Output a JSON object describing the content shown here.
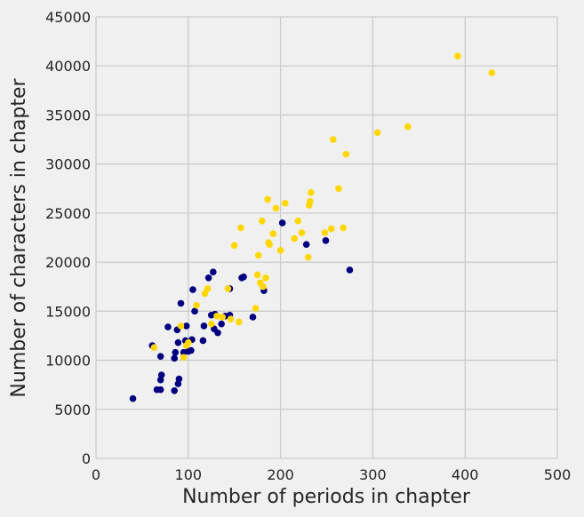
{
  "chart_data": {
    "type": "scatter",
    "title": "",
    "xlabel": "Number of periods in chapter",
    "ylabel": "Number of characters in chapter",
    "xlim": [
      0,
      500
    ],
    "ylim": [
      0,
      45000
    ],
    "xticks": [
      0,
      100,
      200,
      300,
      400,
      500
    ],
    "yticks": [
      0,
      5000,
      10000,
      15000,
      20000,
      25000,
      30000,
      35000,
      40000,
      45000
    ],
    "xtick_labels": [
      "0",
      "100",
      "200",
      "300",
      "400",
      "500"
    ],
    "ytick_labels": [
      "0",
      "5000",
      "10000",
      "15000",
      "20000",
      "25000",
      "30000",
      "35000",
      "40000",
      "45000"
    ],
    "grid": true,
    "series": [
      {
        "color": "#000080",
        "points": [
          [
            40,
            6100
          ],
          [
            66,
            7000
          ],
          [
            70,
            7000
          ],
          [
            70,
            8000
          ],
          [
            71,
            8500
          ],
          [
            85,
            6900
          ],
          [
            89,
            7600
          ],
          [
            90,
            8100
          ],
          [
            70,
            10400
          ],
          [
            85,
            10200
          ],
          [
            86,
            10800
          ],
          [
            61,
            11500
          ],
          [
            88,
            13100
          ],
          [
            89,
            11800
          ],
          [
            92,
            15800
          ],
          [
            95,
            10800
          ],
          [
            97,
            12000
          ],
          [
            98,
            13500
          ],
          [
            100,
            10900
          ],
          [
            103,
            11000
          ],
          [
            104,
            12100
          ],
          [
            105,
            17200
          ],
          [
            107,
            15000
          ],
          [
            78,
            13400
          ],
          [
            116,
            12000
          ],
          [
            117,
            13500
          ],
          [
            122,
            18400
          ],
          [
            125,
            14600
          ],
          [
            127,
            19000
          ],
          [
            129,
            14700
          ],
          [
            128,
            13200
          ],
          [
            132,
            12800
          ],
          [
            136,
            13700
          ],
          [
            140,
            14500
          ],
          [
            145,
            17300
          ],
          [
            145,
            14600
          ],
          [
            158,
            18400
          ],
          [
            160,
            18500
          ],
          [
            170,
            14400
          ],
          [
            182,
            17100
          ],
          [
            202,
            24000
          ],
          [
            228,
            21800
          ],
          [
            249,
            22200
          ],
          [
            275,
            19200
          ]
        ]
      },
      {
        "color": "#ffd700",
        "points": [
          [
            63,
            11300
          ],
          [
            92,
            13500
          ],
          [
            95,
            10300
          ],
          [
            98,
            11500
          ],
          [
            100,
            11800
          ],
          [
            109,
            15600
          ],
          [
            118,
            16800
          ],
          [
            121,
            17300
          ],
          [
            125,
            13700
          ],
          [
            131,
            14500
          ],
          [
            137,
            14400
          ],
          [
            143,
            17300
          ],
          [
            146,
            14200
          ],
          [
            150,
            21700
          ],
          [
            155,
            13900
          ],
          [
            157,
            23500
          ],
          [
            173,
            15300
          ],
          [
            175,
            18700
          ],
          [
            176,
            20700
          ],
          [
            178,
            17900
          ],
          [
            180,
            24200
          ],
          [
            181,
            17500
          ],
          [
            184,
            18400
          ],
          [
            186,
            26400
          ],
          [
            187,
            22000
          ],
          [
            188,
            21800
          ],
          [
            192,
            22900
          ],
          [
            195,
            25500
          ],
          [
            200,
            21200
          ],
          [
            205,
            26000
          ],
          [
            215,
            22400
          ],
          [
            219,
            24200
          ],
          [
            223,
            23000
          ],
          [
            230,
            20500
          ],
          [
            231,
            25800
          ],
          [
            232,
            26200
          ],
          [
            233,
            27100
          ],
          [
            248,
            23000
          ],
          [
            255,
            23400
          ],
          [
            257,
            32500
          ],
          [
            263,
            27500
          ],
          [
            268,
            23500
          ],
          [
            271,
            31000
          ],
          [
            305,
            33200
          ],
          [
            338,
            33800
          ],
          [
            392,
            41000
          ],
          [
            429,
            39300
          ]
        ]
      }
    ]
  }
}
